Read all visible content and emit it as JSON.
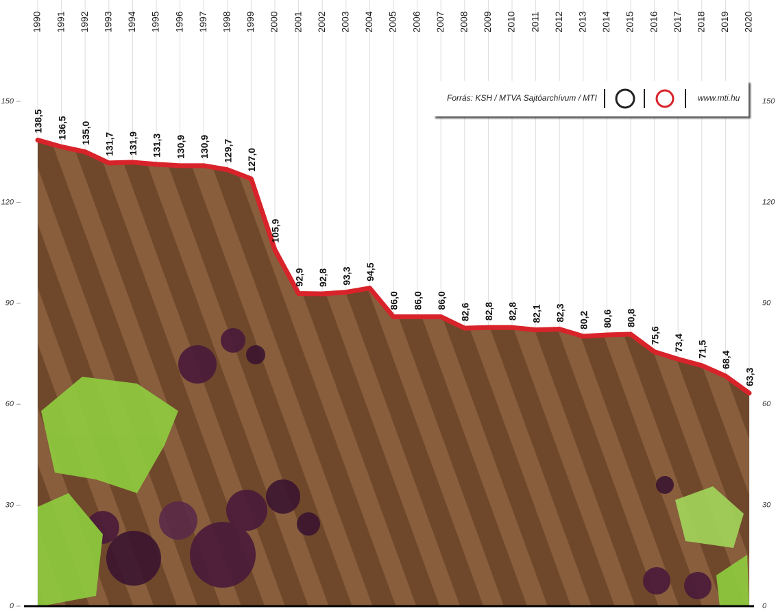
{
  "chart_data": {
    "type": "area",
    "source": "Forrás: KSH / MTVA Sajtóarchívum / MTI",
    "website": "www.mti.hu",
    "categories": [
      "1990",
      "1991",
      "1992",
      "1993",
      "1994",
      "1995",
      "1996",
      "1997",
      "1998",
      "1999",
      "2000",
      "2001",
      "2002",
      "2003",
      "2004",
      "2005",
      "2006",
      "2007",
      "2008",
      "2009",
      "2010",
      "2011",
      "2012",
      "2013",
      "2014",
      "2015",
      "2016",
      "2017",
      "2018",
      "2019",
      "2020"
    ],
    "values": [
      138.5,
      136.5,
      135.0,
      131.7,
      131.9,
      131.3,
      130.9,
      130.9,
      129.7,
      127.0,
      105.9,
      92.9,
      92.8,
      93.3,
      94.5,
      86.0,
      86.0,
      86.0,
      82.6,
      82.8,
      82.8,
      82.1,
      82.3,
      80.2,
      80.6,
      80.8,
      75.6,
      73.4,
      71.5,
      68.4,
      63.3
    ],
    "value_labels": [
      "138,5",
      "136,5",
      "135,0",
      "131,7",
      "131,9",
      "131,3",
      "130,9",
      "130,9",
      "129,7",
      "127,0",
      "105,9",
      "92,9",
      "92,8",
      "93,3",
      "94,5",
      "86,0",
      "86,0",
      "86,0",
      "82,6",
      "82,8",
      "82,8",
      "82,1",
      "82,3",
      "80,2",
      "80,6",
      "80,8",
      "75,6",
      "73,4",
      "71,5",
      "68,4",
      "63,3"
    ],
    "line_color": "#d8232a",
    "fill_color": "#7a5232",
    "ylim": [
      0,
      150
    ],
    "yticks": [
      0,
      30,
      60,
      90,
      120,
      150
    ],
    "grid": true
  }
}
